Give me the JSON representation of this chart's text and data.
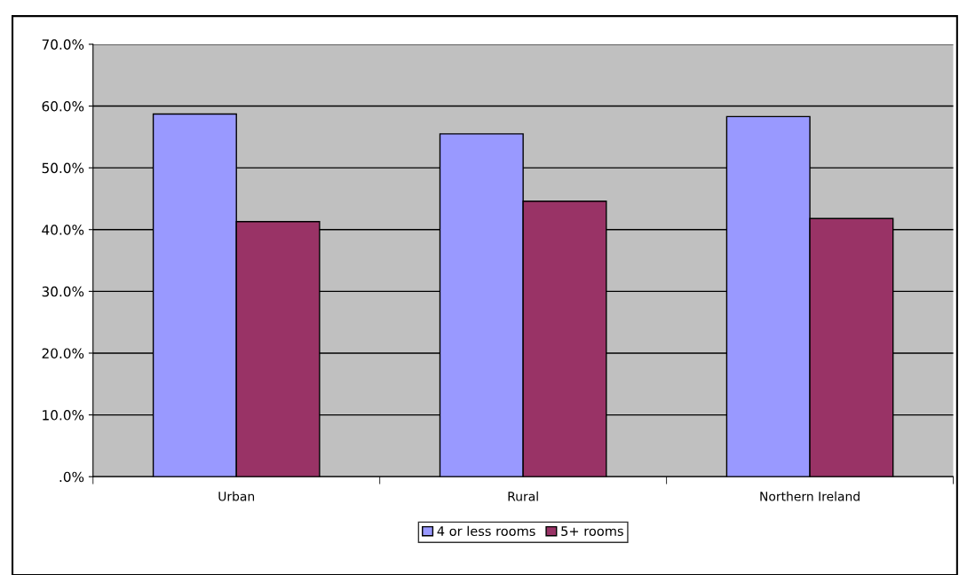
{
  "chart_data": {
    "type": "bar",
    "categories": [
      "Urban",
      "Rural",
      "Northern Ireland"
    ],
    "series": [
      {
        "name": "4 or less rooms",
        "color": "#9999ff",
        "values": [
          58.7,
          55.5,
          58.3
        ]
      },
      {
        "name": "5+ rooms",
        "color": "#993366",
        "values": [
          41.3,
          44.6,
          41.8
        ]
      }
    ],
    "ylim": [
      0,
      70
    ],
    "yticks": [
      {
        "value": 0,
        "label": ".0%"
      },
      {
        "value": 10,
        "label": "10.0%"
      },
      {
        "value": 20,
        "label": "20.0%"
      },
      {
        "value": 30,
        "label": "30.0%"
      },
      {
        "value": 40,
        "label": "40.0%"
      },
      {
        "value": 50,
        "label": "50.0%"
      },
      {
        "value": 60,
        "label": "60.0%"
      },
      {
        "value": 70,
        "label": "70.0%"
      }
    ],
    "grid": "y",
    "legend": "bottom"
  }
}
